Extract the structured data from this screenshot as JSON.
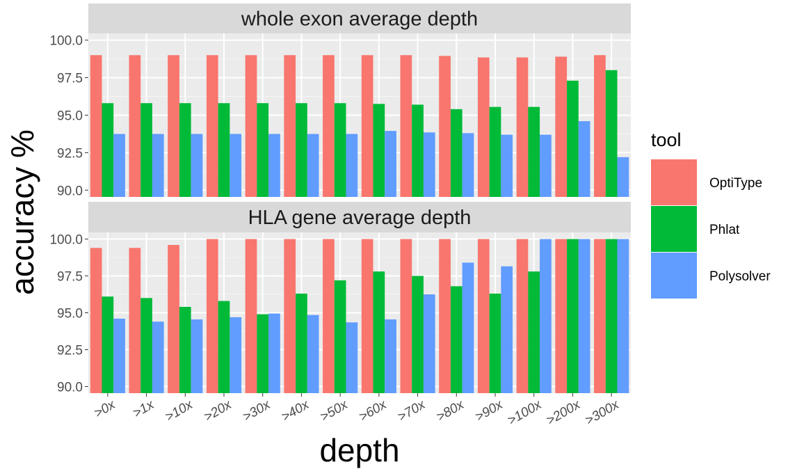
{
  "chart_data": {
    "type": "bar",
    "categories": [
      ">0x",
      ">1x",
      ">10x",
      ">20x",
      ">30x",
      ">40x",
      ">50x",
      ">60x",
      ">70x",
      ">80x",
      ">90x",
      ">100x",
      ">200x",
      ">300x"
    ],
    "xlabel": "depth",
    "ylabel": "accuracy %",
    "ylim": [
      90,
      100
    ],
    "yticks": [
      "90.0",
      "92.5",
      "95.0",
      "97.5",
      "100.0"
    ],
    "legend": {
      "title": "tool",
      "placement": "right"
    },
    "grid": true,
    "colors": {
      "OptiType": "#F8766D",
      "Phlat": "#00BA38",
      "Polysolver": "#619CFF"
    },
    "panels": [
      {
        "title": "whole exon average depth",
        "series": [
          {
            "name": "OptiType",
            "values": [
              99.0,
              99.0,
              99.0,
              99.0,
              99.0,
              99.0,
              99.0,
              99.0,
              99.0,
              98.95,
              98.85,
              98.85,
              98.9,
              99.0
            ]
          },
          {
            "name": "Phlat",
            "values": [
              95.8,
              95.8,
              95.8,
              95.8,
              95.8,
              95.8,
              95.8,
              95.75,
              95.7,
              95.4,
              95.55,
              95.55,
              97.3,
              98.0
            ]
          },
          {
            "name": "Polysolver",
            "values": [
              93.75,
              93.75,
              93.75,
              93.75,
              93.75,
              93.75,
              93.75,
              93.95,
              93.85,
              93.8,
              93.7,
              93.7,
              94.6,
              92.2
            ]
          }
        ]
      },
      {
        "title": "HLA gene  average depth",
        "series": [
          {
            "name": "OptiType",
            "values": [
              99.4,
              99.4,
              99.6,
              100.0,
              100.0,
              100.0,
              100.0,
              100.0,
              100.0,
              100.0,
              100.0,
              100.0,
              100.0,
              100.0
            ]
          },
          {
            "name": "Phlat",
            "values": [
              96.1,
              96.0,
              95.4,
              95.8,
              94.9,
              96.3,
              97.2,
              97.8,
              97.5,
              96.8,
              96.3,
              97.8,
              100.0,
              100.0
            ]
          },
          {
            "name": "Polysolver",
            "values": [
              94.6,
              94.4,
              94.55,
              94.7,
              94.95,
              94.85,
              94.35,
              94.55,
              96.25,
              98.4,
              98.15,
              100.0,
              100.0,
              100.0
            ]
          }
        ]
      }
    ]
  }
}
